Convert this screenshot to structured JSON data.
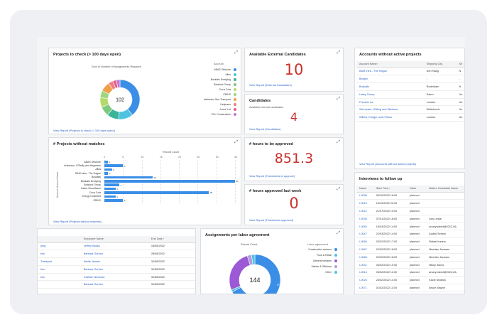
{
  "panels": {
    "projects_to_check": {
      "title": "Projects to check (> 100 days open)",
      "chart_title": "Sum of Number of Assignments Required",
      "center_value": "102",
      "legend_title": "Account",
      "legend": [
        "ABAS Offshore",
        "Allas",
        "Boskalis Dredging",
        "Botsford Group",
        "Coca Cola",
        "ERIKS",
        "Harlmann Sea Transport",
        "Heijmans",
        "Jones' Ltd",
        "PCL Construction"
      ],
      "colors": [
        "#3a8ee6",
        "#4ec3e0",
        "#3bb59a",
        "#7fc97f",
        "#b5d96a",
        "#9dd67d",
        "#f0a04b",
        "#ef7f7f",
        "#e95d8c",
        "#c07cd6"
      ],
      "link": "View Report (Projects to check (> 100 days open))"
    },
    "available_external": {
      "title": "Available External Candidates",
      "value": "10",
      "link": "View Report (External Candidates)"
    },
    "candidates": {
      "title": "Candidates",
      "subtitle": "Available internal candidates",
      "value": "4",
      "link": "View Report (Candidates)"
    },
    "accounts_without_active": {
      "title": "Accounts without active projects",
      "columns": [
        "Account Name ↑",
        "Shipping City",
        "Sh"
      ],
      "rows": [
        [
          "BAM Infra - The Hague",
          "Den Haag",
          "N"
        ],
        [
          "Biogen",
          "-",
          "-"
        ],
        [
          "Boskalis",
          "Rotterdam",
          "N"
        ],
        [
          "Haley Group",
          "Eaton",
          "Un"
        ],
        [
          "Prestnic Inc",
          "London",
          "Un"
        ],
        [
          "Schroeder, Witting and Stiedmer",
          "Whitchurch",
          "Un"
        ],
        [
          "Willms, Kreiger and O'Hara",
          "London",
          "Un"
        ]
      ],
      "link": "View Report (Accounts without active projects)"
    },
    "projects_without_matches": {
      "title": "# Projects without matches",
      "chart_title": "Record Count",
      "ylabel": "Account: Account Name",
      "link": "View Report (Projects without matches)"
    },
    "hours_to_be_approved": {
      "title": "# hours to be approved",
      "value": "851.3",
      "link": "View Report (Timesheets to approve)"
    },
    "hours_approved_last_week": {
      "title": "# hours approved last week",
      "value": "0",
      "link": "View Report (Timesheets approved)"
    },
    "interviews": {
      "title": "Interviews to follow up",
      "columns": [
        "Name",
        "Start Time ↑",
        "State",
        "Match: Candidate Name"
      ],
      "rows": [
        [
          "I-0038",
          "06/10/2022 16:00",
          "planned",
          ""
        ],
        [
          "I-0016",
          "13/10/2022 22:00",
          "planned",
          ""
        ],
        [
          "I-0012",
          "21/07/2022 10:00",
          "planned",
          ""
        ],
        [
          "I-0036",
          "07/01/2022 16:00",
          "planned",
          "Ann Leslie"
        ],
        [
          "I-0055",
          "18/03/2022 14:00",
          "planned",
          "anonymized@2022-06-"
        ],
        [
          "I-0047",
          "22/03/2022 14:00",
          "planned",
          "Audrik Sexton"
        ],
        [
          "I-0069",
          "02/02/2022 17:00",
          "planned",
          "Rafael Inzana"
        ],
        [
          "I-0067",
          "02/02/2022 18:00",
          "planned",
          "Meerten Janssen"
        ],
        [
          "I-0068",
          "02/02/2022 18:00",
          "planned",
          "Meerten Janssen"
        ],
        [
          "I-0031",
          "04/02/2022 10:00",
          "planned",
          "Micky Ibarra"
        ],
        [
          "I-0013",
          "04/02/2022 11:00",
          "planned",
          "anonymized@2022-06-"
        ],
        [
          "I-0026",
          "23/02/2022 14:00",
          "planned",
          "Kacie Mcdrick"
        ],
        [
          "I-0071",
          "01/02/2022 11:00",
          "planned",
          "Bruce Wayne"
        ]
      ]
    },
    "end_dates": {
      "columns": [
        "",
        "Employee Name",
        "End Date ↑"
      ],
      "rows": [
        [
          "ping",
          "Jeffrey Banks",
          "18/08/2022"
        ],
        [
          "tion",
          "Barbara Gordon",
          "28/08/2022"
        ],
        [
          "Transport",
          "Nadia Jamain",
          "31/08/2022"
        ],
        [
          "tion",
          "Barbara Gordon",
          "31/08/2022"
        ],
        [
          "tion",
          "Graham Newman",
          "31/08/2022"
        ],
        [
          "",
          "Barbara Gordon",
          "31/08/2022"
        ]
      ]
    },
    "labor_agreement": {
      "title": "Assignments per labor agreement",
      "chart_title": "Record Count",
      "center_value": "144",
      "slice_label": "97",
      "legend_title": "Labor agreement",
      "legend": [
        "Construction workers",
        "Food & Retail",
        "General services",
        "Marine & Offshore",
        "Other"
      ],
      "colors": [
        "#3a8ee6",
        "#4ec3e0",
        "#9b59d6",
        "#b39ddb",
        "#4ec3e0"
      ]
    }
  },
  "chart_data": [
    {
      "type": "pie",
      "title": "Sum of Number of Assignments Required",
      "categories": [
        "ABAS Offshore",
        "Allas",
        "Boskalis Dredging",
        "Botsford Group",
        "Coca Cola",
        "ERIKS",
        "Harlmann Sea Transport",
        "Heijmans",
        "Jones' Ltd",
        "PCL Construction"
      ],
      "values": [
        40,
        12,
        10,
        8,
        8,
        6,
        8,
        4,
        3,
        3
      ],
      "total": 102
    },
    {
      "type": "bar",
      "orientation": "horizontal",
      "title": "Record Count",
      "ylabel": "Account: Account Name",
      "categories": [
        "ABAS Offshore",
        "Anderson, O'Reilly and Hegmann",
        "Allas",
        "BAM Infra - The Hague",
        "Boskalis",
        "Boskalis Dredging",
        "Botsford Group",
        "Carter-Runolfsson",
        "Coca Cola",
        "Energy Unlimited",
        "ERIKS"
      ],
      "values": [
        1,
        5,
        2,
        1,
        13,
        35,
        4,
        3,
        28,
        3,
        5
      ],
      "xticks": [
        "0",
        "5",
        "10",
        "15",
        "20",
        "25",
        "30",
        "35"
      ],
      "xlim": [
        0,
        35
      ]
    },
    {
      "type": "pie",
      "title": "Record Count",
      "categories": [
        "Construction workers",
        "Food & Retail",
        "General services",
        "Marine & Offshore",
        "Other"
      ],
      "values": [
        97,
        2,
        38,
        4,
        3
      ],
      "total": 144
    }
  ]
}
